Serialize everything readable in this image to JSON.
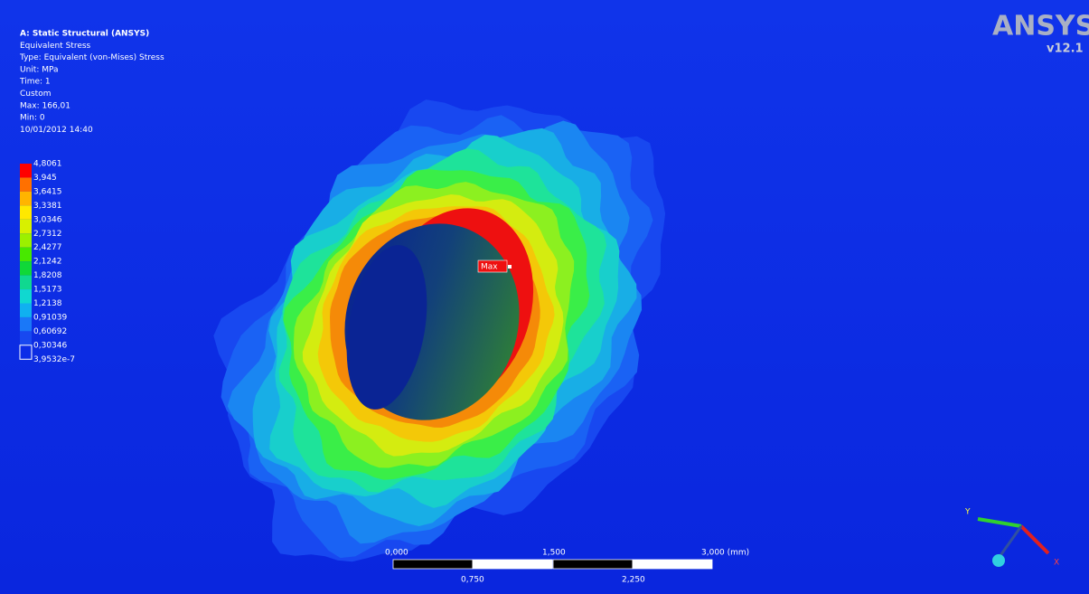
{
  "header": {
    "lines": [
      "A: Static Structural (ANSYS)",
      "Equivalent Stress",
      "Type: Equivalent (von-Mises) Stress",
      "Unit: MPa",
      "Time: 1",
      "Custom",
      "Max: 166,01",
      "Min: 0",
      "10/01/2012 14:40"
    ]
  },
  "legend": {
    "labels": [
      "4,8061",
      "3,945",
      "3,6415",
      "3,3381",
      "3,0346",
      "2,7312",
      "2,4277",
      "2,1242",
      "1,8208",
      "1,5173",
      "1,2138",
      "0,91039",
      "0,60692",
      "0,30346",
      "3,9532e-7"
    ],
    "colors": [
      "#ff0000",
      "#ff7000",
      "#ffb400",
      "#ffe800",
      "#d8f000",
      "#9cf000",
      "#48e800",
      "#10d838",
      "#10d890",
      "#10d8d0",
      "#10b0f0",
      "#1a78f8",
      "#1848f0",
      "#0c2de8"
    ]
  },
  "probe": {
    "label": "Max"
  },
  "logo": {
    "brand": "ANSYS",
    "version": "v12.1"
  },
  "scale_bar": {
    "top_labels": [
      "0,000",
      "1,500",
      "3,000 (mm)"
    ],
    "bottom_labels": [
      "0,750",
      "2,250"
    ]
  },
  "triad": {
    "labels": [
      "Y",
      "X"
    ]
  }
}
